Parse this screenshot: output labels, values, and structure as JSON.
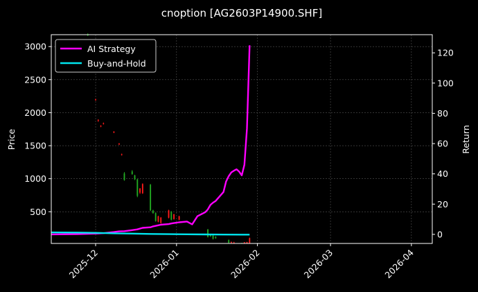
{
  "chart_data": {
    "type": "line",
    "title": "cnoption [AG2603P14900.SHF]",
    "xlabel": "",
    "ylabel": "Price",
    "y2label": "Return",
    "xlim": [
      "2025-11-14",
      "2026-04-09"
    ],
    "ylim": [
      20,
      3180
    ],
    "y2lim": [
      -6,
      132
    ],
    "x_ticks": [
      "2025-12",
      "2026-01",
      "2026-02",
      "2026-03",
      "2026-04"
    ],
    "y_ticks": [
      500,
      1000,
      1500,
      2000,
      2500,
      3000
    ],
    "y2_ticks": [
      0,
      20,
      40,
      60,
      80,
      100,
      120
    ],
    "grid": true,
    "legend_position": "top-left",
    "colors": {
      "background": "#000000",
      "ai_strategy": "#ff00ff",
      "buy_and_hold": "#00e5ee",
      "candle_up": "#ff1a1a",
      "candle_down": "#22aa22",
      "grid": "#555555",
      "axes": "#ffffff"
    },
    "candles": [
      {
        "date": "2025-11-28",
        "open": 3180,
        "high": 3200,
        "low": 3160,
        "close": 3170
      },
      {
        "date": "2025-12-01",
        "open": 2190,
        "high": 2210,
        "low": 2180,
        "close": 2200
      },
      {
        "date": "2025-12-02",
        "open": 1880,
        "high": 1900,
        "low": 1860,
        "close": 1890
      },
      {
        "date": "2025-12-03",
        "open": 1790,
        "high": 1810,
        "low": 1780,
        "close": 1800
      },
      {
        "date": "2025-12-04",
        "open": 1830,
        "high": 1850,
        "low": 1820,
        "close": 1840
      },
      {
        "date": "2025-12-08",
        "open": 1700,
        "high": 1720,
        "low": 1690,
        "close": 1710
      },
      {
        "date": "2025-12-10",
        "open": 1520,
        "high": 1540,
        "low": 1510,
        "close": 1530
      },
      {
        "date": "2025-12-11",
        "open": 1360,
        "high": 1380,
        "low": 1350,
        "close": 1370
      },
      {
        "date": "2025-12-12",
        "open": 1080,
        "high": 1100,
        "low": 970,
        "close": 980
      },
      {
        "date": "2025-12-15",
        "open": 1110,
        "high": 1130,
        "low": 1060,
        "close": 1070
      },
      {
        "date": "2025-12-16",
        "open": 1050,
        "high": 1060,
        "low": 980,
        "close": 990
      },
      {
        "date": "2025-12-17",
        "open": 990,
        "high": 1000,
        "low": 720,
        "close": 740
      },
      {
        "date": "2025-12-18",
        "open": 790,
        "high": 860,
        "low": 770,
        "close": 850
      },
      {
        "date": "2025-12-19",
        "open": 780,
        "high": 930,
        "low": 770,
        "close": 920
      },
      {
        "date": "2025-12-22",
        "open": 910,
        "high": 920,
        "low": 510,
        "close": 520
      },
      {
        "date": "2025-12-23",
        "open": 520,
        "high": 530,
        "low": 470,
        "close": 480
      },
      {
        "date": "2025-12-24",
        "open": 480,
        "high": 490,
        "low": 350,
        "close": 360
      },
      {
        "date": "2025-12-25",
        "open": 350,
        "high": 440,
        "low": 340,
        "close": 430
      },
      {
        "date": "2025-12-26",
        "open": 330,
        "high": 420,
        "low": 320,
        "close": 410
      },
      {
        "date": "2025-12-29",
        "open": 410,
        "high": 530,
        "low": 400,
        "close": 520
      },
      {
        "date": "2025-12-30",
        "open": 500,
        "high": 510,
        "low": 370,
        "close": 380
      },
      {
        "date": "2025-12-31",
        "open": 390,
        "high": 470,
        "low": 380,
        "close": 460
      },
      {
        "date": "2026-01-02",
        "open": 380,
        "high": 440,
        "low": 370,
        "close": 430
      },
      {
        "date": "2026-01-13",
        "open": 230,
        "high": 240,
        "low": 110,
        "close": 120
      },
      {
        "date": "2026-01-14",
        "open": 150,
        "high": 160,
        "low": 120,
        "close": 130
      },
      {
        "date": "2026-01-15",
        "open": 140,
        "high": 150,
        "low": 80,
        "close": 90
      },
      {
        "date": "2026-01-16",
        "open": 120,
        "high": 130,
        "low": 90,
        "close": 100
      },
      {
        "date": "2026-01-21",
        "open": 70,
        "high": 80,
        "low": 20,
        "close": 30
      },
      {
        "date": "2026-01-22",
        "open": 30,
        "high": 50,
        "low": 20,
        "close": 40
      },
      {
        "date": "2026-01-23",
        "open": 30,
        "high": 45,
        "low": 20,
        "close": 35
      },
      {
        "date": "2026-01-26",
        "open": 25,
        "high": 30,
        "low": 20,
        "close": 22
      },
      {
        "date": "2026-01-27",
        "open": 22,
        "high": 40,
        "low": 20,
        "close": 38
      },
      {
        "date": "2026-01-28",
        "open": 25,
        "high": 45,
        "low": 20,
        "close": 40
      },
      {
        "date": "2026-01-29",
        "open": 20,
        "high": 110,
        "low": 20,
        "close": 100
      }
    ],
    "series": [
      {
        "name": "AI Strategy",
        "x": [
          "2025-11-14",
          "2025-11-24",
          "2025-12-01",
          "2025-12-04",
          "2025-12-08",
          "2025-12-10",
          "2025-12-12",
          "2025-12-15",
          "2025-12-17",
          "2025-12-19",
          "2025-12-22",
          "2025-12-23",
          "2025-12-25",
          "2025-12-26",
          "2025-12-29",
          "2025-12-30",
          "2025-12-31",
          "2026-01-02",
          "2026-01-05",
          "2026-01-07",
          "2026-01-09",
          "2026-01-12",
          "2026-01-13",
          "2026-01-14",
          "2026-01-15",
          "2026-01-16",
          "2026-01-19",
          "2026-01-20",
          "2026-01-21",
          "2026-01-22",
          "2026-01-23",
          "2026-01-24",
          "2026-01-25",
          "2026-01-26",
          "2026-01-27",
          "2026-01-28",
          "2026-01-29"
        ],
        "values": [
          0,
          0.2,
          0.5,
          0.8,
          1.5,
          2.0,
          2.1,
          2.8,
          3.3,
          4.3,
          4.7,
          5.3,
          6.0,
          6.4,
          6.8,
          7.2,
          7.5,
          8.0,
          8.5,
          6.6,
          12.0,
          14.7,
          16.5,
          19.5,
          21.0,
          22.1,
          28.0,
          35.0,
          38.5,
          41.0,
          42.1,
          43.0,
          41.5,
          39.0,
          46.0,
          70.0,
          125.0
        ]
      },
      {
        "name": "Buy-and-Hold",
        "x": [
          "2025-11-14",
          "2025-11-24",
          "2025-12-01",
          "2025-12-08",
          "2025-12-15",
          "2025-12-22",
          "2025-12-29",
          "2026-01-05",
          "2026-01-12",
          "2026-01-19",
          "2026-01-26",
          "2026-01-29"
        ],
        "values": [
          1.3,
          1.2,
          1.0,
          0.7,
          0.5,
          0.3,
          0.15,
          0.05,
          -0.05,
          -0.15,
          -0.2,
          -0.2
        ]
      }
    ]
  }
}
